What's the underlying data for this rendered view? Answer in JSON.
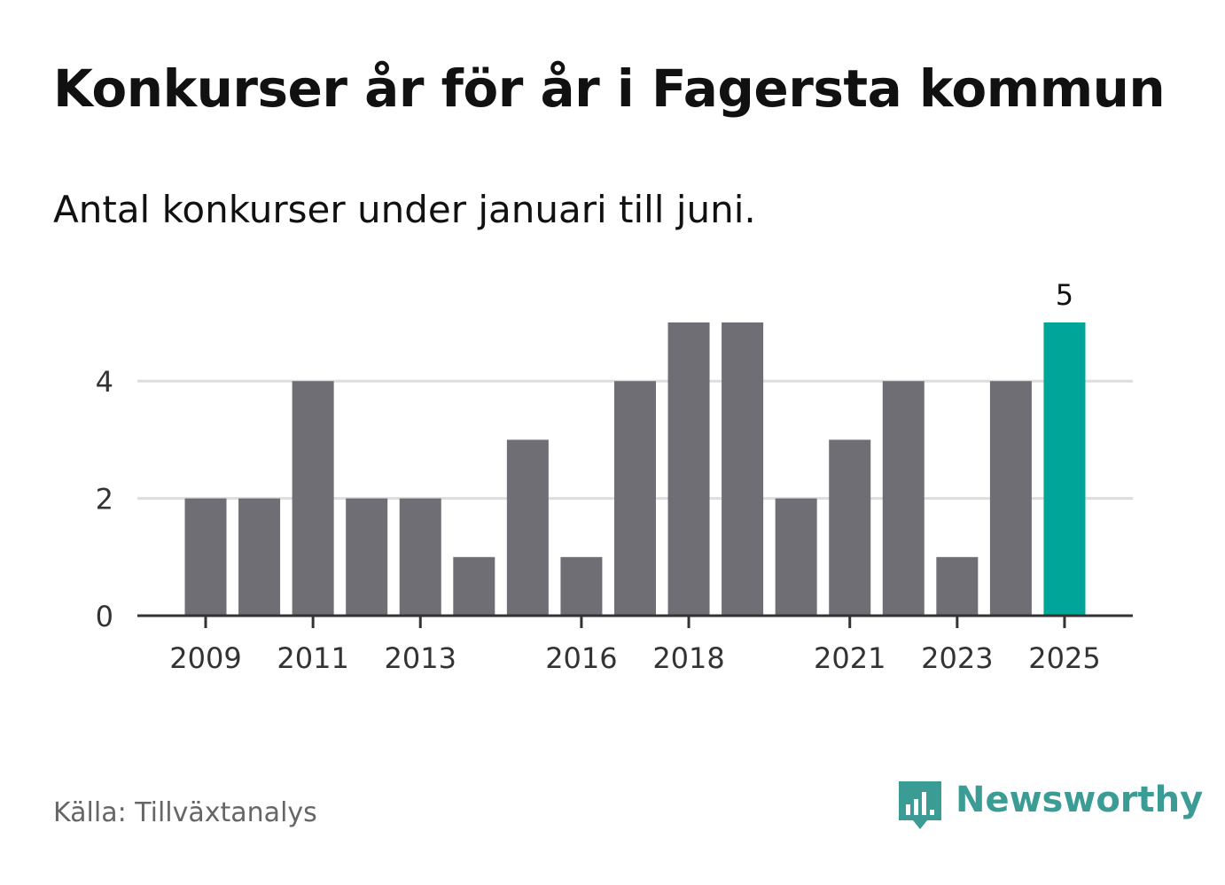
{
  "title": "Konkurser år för år i Fagersta kommun",
  "subtitle": "Antal konkurser under januari till juni.",
  "source": "Källa: Tillväxtanalys",
  "brand": {
    "name": "Newsworthy",
    "icon": "bar-chart-speech-bubble-icon",
    "color": "#3a9c94"
  },
  "colors": {
    "bar": "#6f6e75",
    "highlight": "#00a59a",
    "grid": "#dddddd",
    "axis": "#333333"
  },
  "chart_data": {
    "type": "bar",
    "categories": [
      "2009",
      "2010",
      "2011",
      "2012",
      "2013",
      "2014",
      "2015",
      "2016",
      "2017",
      "2018",
      "2019",
      "2020",
      "2021",
      "2022",
      "2023",
      "2024",
      "2025"
    ],
    "values": [
      2,
      2,
      4,
      2,
      2,
      1,
      3,
      1,
      4,
      5,
      5,
      2,
      3,
      4,
      1,
      4,
      5
    ],
    "highlight_category": "2025",
    "data_labels": {
      "2025": "5"
    },
    "x_tick_labels": [
      "2009",
      "2011",
      "2013",
      "2016",
      "2018",
      "2021",
      "2023",
      "2025"
    ],
    "y_ticks": [
      0,
      2,
      4
    ],
    "ylim": [
      0,
      5
    ],
    "xlabel": "",
    "ylabel": "",
    "grid": true,
    "legend": false
  }
}
